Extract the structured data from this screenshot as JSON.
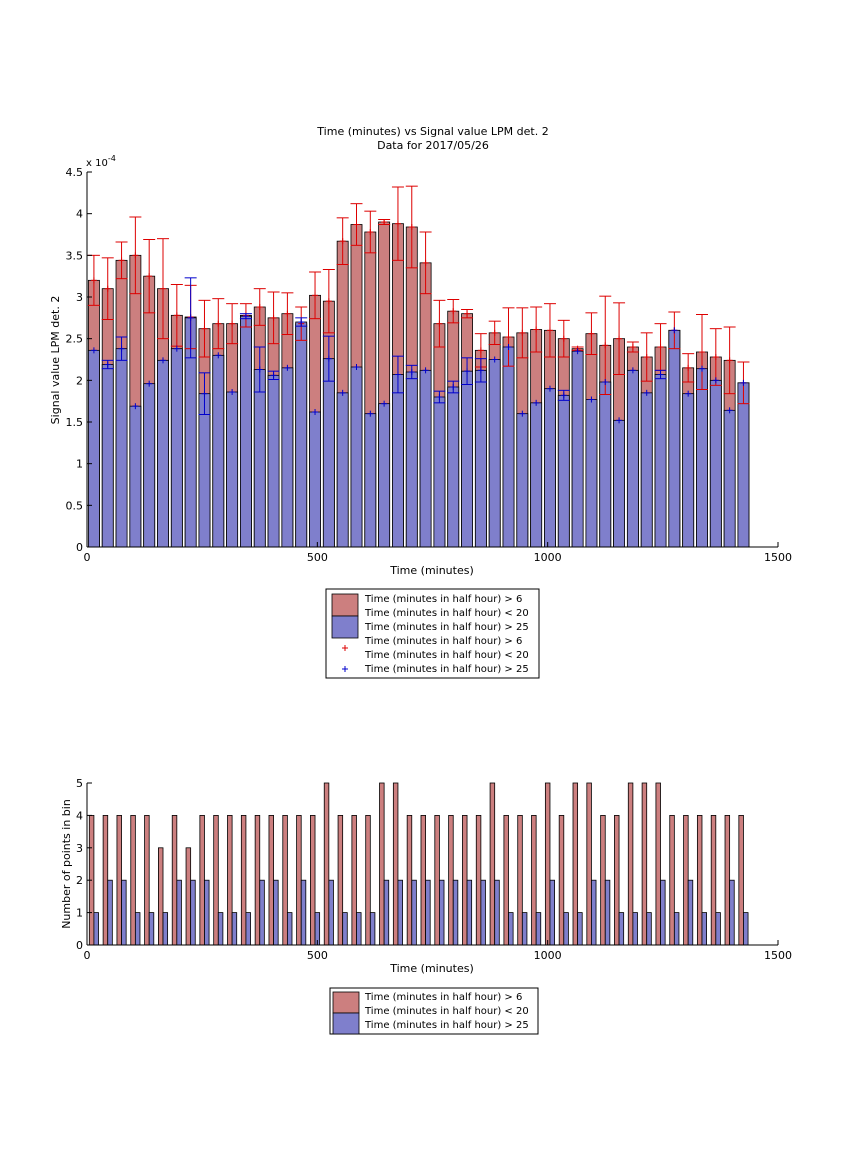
{
  "figure": {
    "background": "#ffffff",
    "colors": {
      "red_bar": "#cc7f7f",
      "blue_bar": "#7f7fcc",
      "red_err": "#dd0000",
      "blue_err": "#0000cc"
    }
  },
  "chart_data": [
    {
      "type": "bar",
      "title": "Time (minutes) vs Signal value LPM det. 2",
      "subtitle": "Data for 2017/05/26",
      "xlabel": "Time (minutes)",
      "ylabel": "Signal value LPM det. 2",
      "yexponent_label": "x 10",
      "yexponent_power": "-4",
      "xlim": [
        0,
        1500
      ],
      "ylim": [
        0,
        4.5
      ],
      "xticks": [
        "0",
        "500",
        "1000",
        "1500"
      ],
      "yticks": [
        "0",
        "0.5",
        "1",
        "1.5",
        "2",
        "2.5",
        "3",
        "3.5",
        "4",
        "4.5"
      ],
      "bin_width": 24,
      "x": [
        15,
        45,
        75,
        105,
        135,
        165,
        195,
        225,
        255,
        285,
        315,
        345,
        375,
        405,
        435,
        465,
        495,
        525,
        555,
        585,
        615,
        645,
        675,
        705,
        735,
        765,
        795,
        825,
        855,
        885,
        915,
        945,
        975,
        1005,
        1035,
        1065,
        1095,
        1125,
        1155,
        1185,
        1215,
        1245,
        1275,
        1305,
        1335,
        1365,
        1395,
        1425
      ],
      "series": [
        {
          "name": "Time (minutes in half hour) > 6 Time (minutes in half hour) < 20",
          "values": [
            3.2,
            3.1,
            3.44,
            3.5,
            3.25,
            3.1,
            2.78,
            2.76,
            2.62,
            2.68,
            2.68,
            2.78,
            2.88,
            2.75,
            2.8,
            2.68,
            3.02,
            2.95,
            3.67,
            3.87,
            3.78,
            3.9,
            3.88,
            3.84,
            3.41,
            2.68,
            2.83,
            2.8,
            2.36,
            2.57,
            2.52,
            2.57,
            2.61,
            2.6,
            2.5,
            2.38,
            2.56,
            2.42,
            2.5,
            2.4,
            2.28,
            2.4,
            2.6,
            2.15,
            2.34,
            2.28,
            2.24,
            1.97
          ],
          "err": [
            0.3,
            0.37,
            0.22,
            0.46,
            0.44,
            0.6,
            0.37,
            0.38,
            0.34,
            0.3,
            0.24,
            0.14,
            0.22,
            0.31,
            0.25,
            0.2,
            0.28,
            0.38,
            0.28,
            0.25,
            0.25,
            0.03,
            0.44,
            0.49,
            0.37,
            0.28,
            0.14,
            0.05,
            0.2,
            0.14,
            0.35,
            0.3,
            0.27,
            0.32,
            0.22,
            0.02,
            0.25,
            0.59,
            0.43,
            0.06,
            0.29,
            0.28,
            0.22,
            0.17,
            0.45,
            0.34,
            0.4,
            0.25
          ]
        },
        {
          "name": "Time (minutes in half hour) > 25",
          "values": [
            2.36,
            2.19,
            2.38,
            1.69,
            1.96,
            2.24,
            2.38,
            2.75,
            1.84,
            2.3,
            1.86,
            2.77,
            2.13,
            2.06,
            2.15,
            2.7,
            1.62,
            2.26,
            1.85,
            2.16,
            1.6,
            1.72,
            2.07,
            2.1,
            2.12,
            1.8,
            1.92,
            2.11,
            2.12,
            2.25,
            2.4,
            1.6,
            1.73,
            1.9,
            1.82,
            2.35,
            1.77,
            1.98,
            1.52,
            2.12,
            1.85,
            2.07,
            2.6,
            1.84,
            2.14,
            2.0,
            1.64,
            1.97
          ],
          "err": [
            0.0,
            0.05,
            0.14,
            0.0,
            0.0,
            0.0,
            0.0,
            0.48,
            0.25,
            0.0,
            0.0,
            0.03,
            0.27,
            0.05,
            0.0,
            0.05,
            0.0,
            0.27,
            0.0,
            0.0,
            0.0,
            0.0,
            0.22,
            0.08,
            0.0,
            0.07,
            0.07,
            0.16,
            0.14,
            0.0,
            0.0,
            0.0,
            0.0,
            0.0,
            0.06,
            0.0,
            0.0,
            0.0,
            0.0,
            0.0,
            0.0,
            0.05,
            0.0,
            0.0,
            0.0,
            0.0,
            0.0,
            0.0
          ]
        }
      ],
      "legend_placement": "below",
      "legend": [
        {
          "label": "Time (minutes in half hour) > 6",
          "label2": "Time (minutes in half hour) < 20",
          "kind": "patch",
          "color": "#cc7f7f"
        },
        {
          "label": "Time (minutes in half hour) > 25",
          "kind": "patch",
          "color": "#7f7fcc"
        },
        {
          "label": "Time (minutes in half hour) > 6",
          "label2": "Time (minutes in half hour) < 20",
          "kind": "marker",
          "color": "#dd0000"
        },
        {
          "label": "Time (minutes in half hour) > 25",
          "kind": "marker",
          "color": "#0000cc"
        }
      ],
      "grid": false
    },
    {
      "type": "bar",
      "title": "",
      "xlabel": "Time (minutes)",
      "ylabel": "Number of points in bin",
      "xlim": [
        0,
        1500
      ],
      "ylim": [
        0,
        5
      ],
      "xticks": [
        "0",
        "500",
        "1000",
        "1500"
      ],
      "yticks": [
        "0",
        "1",
        "2",
        "3",
        "4",
        "5"
      ],
      "bin_width": 10,
      "x": [
        15,
        45,
        75,
        105,
        135,
        165,
        195,
        225,
        255,
        285,
        315,
        345,
        375,
        405,
        435,
        465,
        495,
        525,
        555,
        585,
        615,
        645,
        675,
        705,
        735,
        765,
        795,
        825,
        855,
        885,
        915,
        945,
        975,
        1005,
        1035,
        1065,
        1095,
        1125,
        1155,
        1185,
        1215,
        1245,
        1275,
        1305,
        1335,
        1365,
        1395,
        1425
      ],
      "series": [
        {
          "name": "Time (minutes in half hour) > 6 Time (minutes in half hour) < 20",
          "offset": -5,
          "values": [
            4,
            4,
            4,
            4,
            4,
            3,
            4,
            3,
            4,
            4,
            4,
            4,
            4,
            4,
            4,
            4,
            4,
            5,
            4,
            4,
            4,
            5,
            5,
            4,
            4,
            4,
            4,
            4,
            4,
            5,
            4,
            4,
            4,
            5,
            4,
            5,
            5,
            4,
            4,
            5,
            5,
            5,
            4,
            4,
            4,
            4,
            4,
            4
          ]
        },
        {
          "name": "Time (minutes in half hour) > 25",
          "offset": 5,
          "values": [
            1,
            2,
            2,
            1,
            1,
            1,
            2,
            2,
            2,
            1,
            1,
            1,
            2,
            2,
            1,
            2,
            1,
            2,
            1,
            1,
            1,
            2,
            2,
            2,
            2,
            2,
            2,
            2,
            2,
            2,
            1,
            1,
            1,
            2,
            1,
            1,
            2,
            2,
            1,
            1,
            1,
            2,
            1,
            2,
            1,
            1,
            2,
            1
          ]
        }
      ],
      "legend_placement": "below",
      "legend": [
        {
          "label": "Time (minutes in half hour) > 6",
          "label2": "Time (minutes in half hour) < 20",
          "kind": "patch",
          "color": "#cc7f7f"
        },
        {
          "label": "Time (minutes in half hour) > 25",
          "kind": "patch",
          "color": "#7f7fcc"
        }
      ],
      "grid": false
    }
  ]
}
